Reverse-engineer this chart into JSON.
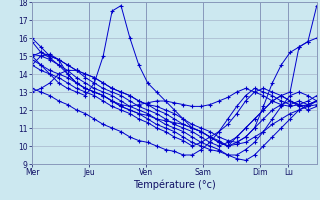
{
  "xlabel": "Température (°c)",
  "xlim": [
    0,
    130
  ],
  "ylim": [
    9,
    18
  ],
  "yticks": [
    9,
    10,
    11,
    12,
    13,
    14,
    15,
    16,
    17,
    18
  ],
  "day_positions": [
    0,
    26,
    52,
    78,
    104,
    117,
    130
  ],
  "day_labels": [
    "Mer",
    "Jeu",
    "Ven",
    "Sam",
    "Dim",
    "Lu"
  ],
  "background_color": "#cce8f0",
  "grid_color": "#aabbd0",
  "line_color": "#0000cc",
  "lines": [
    [
      14.5,
      15.0,
      15.1,
      14.8,
      14.0,
      13.5,
      13.2,
      13.0,
      12.8,
      12.5,
      12.3,
      12.2,
      12.3,
      12.4,
      12.5,
      12.5,
      12.4,
      12.3,
      12.2,
      12.2,
      12.3,
      12.5,
      12.7,
      13.0,
      13.2,
      13.0,
      12.8,
      12.5,
      12.3,
      12.2,
      12.3,
      12.5,
      12.8
    ],
    [
      15.8,
      15.2,
      14.9,
      14.5,
      14.0,
      13.5,
      13.2,
      13.0,
      12.8,
      12.5,
      12.2,
      12.0,
      11.8,
      11.7,
      11.5,
      11.4,
      11.3,
      11.2,
      11.0,
      10.8,
      10.5,
      10.2,
      10.0,
      10.1,
      10.2,
      10.5,
      10.8,
      11.2,
      11.5,
      11.8,
      12.0,
      12.2,
      12.3
    ],
    [
      15.0,
      14.5,
      14.0,
      13.5,
      13.2,
      13.0,
      12.8,
      13.5,
      15.0,
      17.5,
      17.8,
      16.0,
      14.5,
      13.5,
      13.0,
      12.5,
      12.0,
      11.5,
      11.0,
      10.8,
      10.5,
      10.2,
      10.0,
      10.5,
      11.0,
      11.5,
      12.0,
      12.5,
      12.8,
      12.5,
      12.3,
      12.0,
      12.2
    ],
    [
      15.1,
      15.0,
      14.8,
      14.5,
      14.2,
      13.8,
      13.5,
      13.2,
      13.0,
      12.8,
      12.5,
      12.2,
      12.0,
      11.8,
      11.5,
      11.2,
      11.0,
      10.8,
      10.5,
      10.2,
      10.0,
      9.8,
      9.5,
      9.3,
      9.2,
      9.5,
      10.0,
      10.5,
      11.0,
      11.5,
      12.0,
      12.3,
      12.5
    ],
    [
      13.0,
      13.2,
      13.5,
      14.0,
      14.2,
      14.2,
      14.0,
      13.8,
      13.5,
      13.2,
      13.0,
      12.8,
      12.5,
      12.3,
      12.2,
      12.0,
      11.8,
      11.5,
      11.2,
      11.0,
      10.8,
      10.5,
      10.3,
      10.2,
      10.5,
      11.0,
      11.5,
      12.0,
      12.3,
      12.5,
      12.3,
      12.2,
      12.5
    ],
    [
      15.0,
      15.2,
      15.0,
      14.8,
      14.5,
      14.2,
      14.0,
      13.8,
      13.5,
      13.2,
      13.0,
      12.8,
      12.5,
      12.3,
      12.0,
      11.8,
      11.5,
      11.2,
      11.0,
      10.8,
      10.5,
      10.3,
      10.0,
      10.2,
      10.5,
      11.0,
      12.2,
      13.5,
      14.5,
      15.2,
      15.5,
      15.8,
      16.0
    ],
    [
      14.8,
      14.5,
      14.2,
      14.0,
      13.8,
      13.5,
      13.2,
      13.0,
      12.8,
      12.5,
      12.2,
      12.0,
      11.8,
      11.5,
      11.2,
      11.0,
      10.8,
      10.5,
      10.2,
      10.0,
      9.8,
      9.7,
      9.5,
      9.5,
      9.8,
      10.2,
      10.8,
      11.5,
      12.2,
      12.8,
      13.0,
      12.8,
      12.5
    ],
    [
      13.2,
      13.0,
      12.8,
      12.5,
      12.3,
      12.0,
      11.8,
      11.5,
      11.2,
      11.0,
      10.8,
      10.5,
      10.3,
      10.2,
      10.0,
      9.8,
      9.7,
      9.5,
      9.5,
      9.8,
      10.2,
      10.8,
      11.5,
      12.2,
      12.8,
      13.2,
      13.0,
      12.8,
      12.5,
      12.3,
      12.5,
      12.3,
      12.5
    ],
    [
      14.5,
      14.2,
      14.0,
      13.8,
      13.5,
      13.2,
      13.0,
      12.8,
      12.5,
      12.2,
      12.0,
      11.8,
      11.5,
      11.3,
      11.0,
      10.8,
      10.5,
      10.3,
      10.0,
      10.2,
      10.5,
      10.8,
      11.2,
      11.8,
      12.5,
      13.0,
      13.2,
      13.0,
      12.8,
      12.5,
      12.2,
      12.3,
      12.5
    ],
    [
      16.0,
      15.5,
      15.0,
      14.8,
      14.5,
      14.2,
      13.8,
      13.5,
      13.2,
      13.0,
      12.8,
      12.5,
      12.2,
      12.0,
      11.8,
      11.5,
      11.2,
      11.0,
      10.8,
      10.5,
      10.2,
      10.0,
      10.2,
      10.5,
      11.0,
      11.5,
      12.0,
      12.5,
      12.8,
      13.0,
      15.5,
      15.8,
      17.8
    ]
  ]
}
